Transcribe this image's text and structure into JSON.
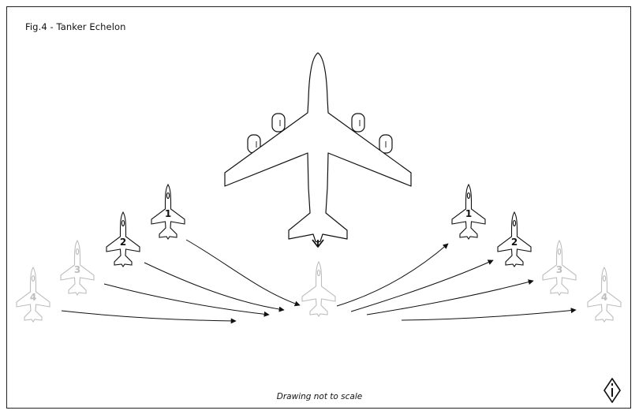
{
  "title": "Fig.4 - Tanker Echelon",
  "caption": "Drawing not to scale",
  "icons": {
    "corner_logo": "north-arrow-icon"
  },
  "colors": {
    "active_stroke": "#111111",
    "faded_stroke": "#bdbdbd",
    "background": "#ffffff"
  },
  "left_echelon": [
    {
      "number": "1",
      "state": "active"
    },
    {
      "number": "2",
      "state": "active"
    },
    {
      "number": "3",
      "state": "faded"
    },
    {
      "number": "4",
      "state": "faded"
    }
  ],
  "right_echelon": [
    {
      "number": "1",
      "state": "active"
    },
    {
      "number": "2",
      "state": "active"
    },
    {
      "number": "3",
      "state": "faded"
    },
    {
      "number": "4",
      "state": "faded"
    }
  ]
}
